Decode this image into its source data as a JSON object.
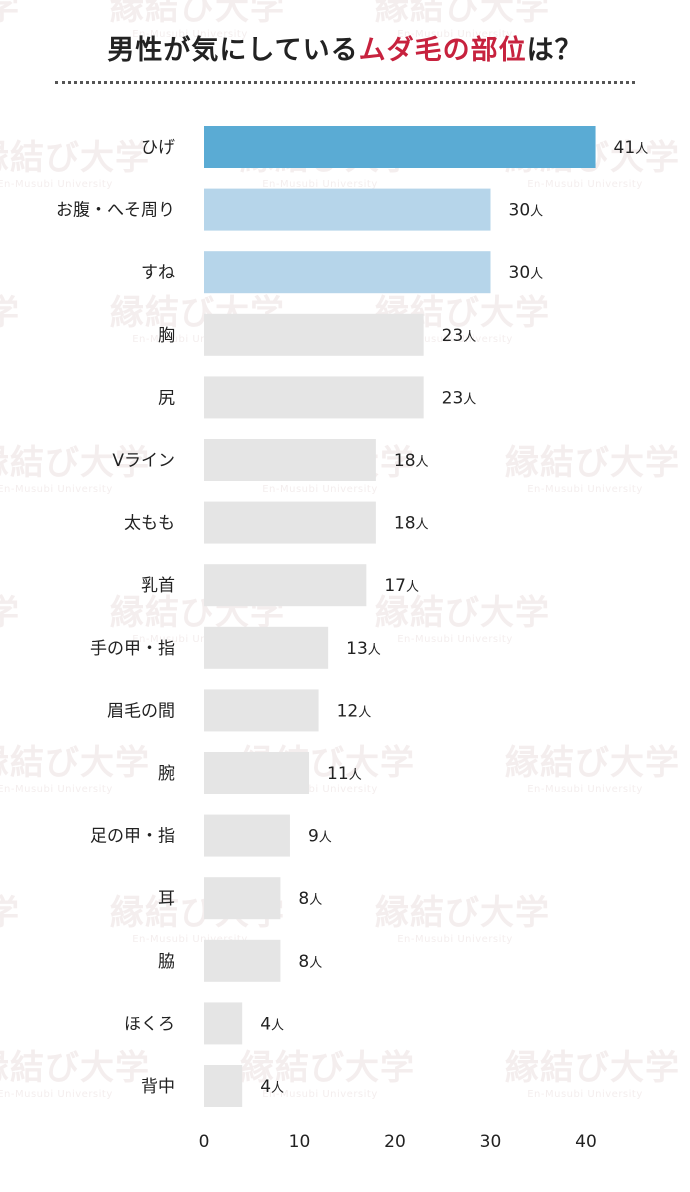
{
  "watermark": {
    "main": "縁結び大学",
    "sub": "En-Musubi University",
    "color": "#f4eeee"
  },
  "title": {
    "prefix": "男性が気にしている",
    "accent": "ムダ毛の部位",
    "suffix": "は？",
    "accent_color": "#c7223e"
  },
  "chart_data": {
    "type": "bar",
    "orientation": "horizontal",
    "categories": [
      "ひげ",
      "お腹・へそ周り",
      "すね",
      "胸",
      "尻",
      "Vライン",
      "太もも",
      "乳首",
      "手の甲・指",
      "眉毛の間",
      "腕",
      "足の甲・指",
      "耳",
      "脇",
      "ほくろ",
      "背中"
    ],
    "values": [
      41,
      30,
      30,
      23,
      23,
      18,
      18,
      17,
      13,
      12,
      11,
      9,
      8,
      8,
      4,
      4
    ],
    "value_unit": "人",
    "xlim": [
      0,
      43
    ],
    "xticks": [
      0,
      10,
      20,
      30,
      40
    ],
    "grid": false,
    "colors": {
      "rank1": "#5aabd4",
      "rank2": "#b6d5ea",
      "other": "#e5e5e5"
    }
  }
}
